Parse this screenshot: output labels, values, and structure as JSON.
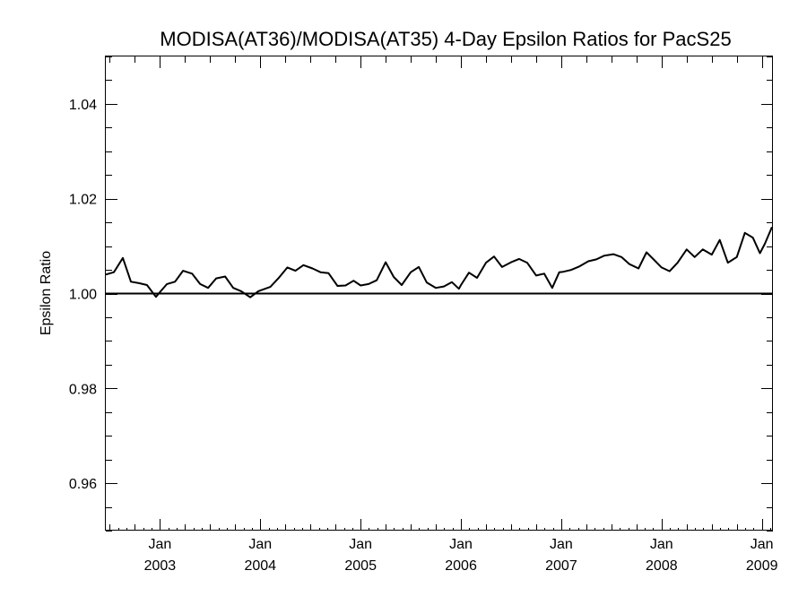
{
  "chart_data": {
    "type": "line",
    "title": "MODISA(AT36)/MODISA(AT35) 4-Day Epsilon Ratios for PacS25",
    "xlabel": "",
    "ylabel": "Epsilon Ratio",
    "xlim": [
      2002.46,
      2009.11
    ],
    "ylim": [
      0.95,
      1.05
    ],
    "yticks": [
      {
        "value": 0.96,
        "label": "0.96"
      },
      {
        "value": 0.98,
        "label": "0.98"
      },
      {
        "value": 1.0,
        "label": "1.00"
      },
      {
        "value": 1.02,
        "label": "1.02"
      },
      {
        "value": 1.04,
        "label": "1.04"
      }
    ],
    "xticks": [
      {
        "value": 2003,
        "month": "Jan",
        "year": "2003"
      },
      {
        "value": 2004,
        "month": "Jan",
        "year": "2004"
      },
      {
        "value": 2005,
        "month": "Jan",
        "year": "2005"
      },
      {
        "value": 2006,
        "month": "Jan",
        "year": "2006"
      },
      {
        "value": 2007,
        "month": "Jan",
        "year": "2007"
      },
      {
        "value": 2008,
        "month": "Jan",
        "year": "2008"
      },
      {
        "value": 2009,
        "month": "Jan",
        "year": "2009"
      }
    ],
    "reference_line": 1.0,
    "grid": false,
    "series": [
      {
        "x": [
          2002.46,
          2002.54,
          2002.63,
          2002.71,
          2002.79,
          2002.87,
          2002.96,
          2003.0,
          2003.07,
          2003.15,
          2003.23,
          2003.32,
          2003.4,
          2003.48,
          2003.56,
          2003.65,
          2003.73,
          2003.81,
          2003.9,
          2003.98,
          2004.02,
          2004.1,
          2004.18,
          2004.27,
          2004.35,
          2004.43,
          2004.52,
          2004.6,
          2004.68,
          2004.77,
          2004.85,
          2004.93,
          2005.0,
          2005.08,
          2005.16,
          2005.25,
          2005.33,
          2005.41,
          2005.5,
          2005.58,
          2005.66,
          2005.75,
          2005.83,
          2005.91,
          2005.98,
          2006.0,
          2006.08,
          2006.16,
          2006.25,
          2006.33,
          2006.41,
          2006.5,
          2006.58,
          2006.66,
          2006.75,
          2006.83,
          2006.91,
          2006.98,
          2007.02,
          2007.1,
          2007.18,
          2007.27,
          2007.35,
          2007.43,
          2007.52,
          2007.6,
          2007.68,
          2007.77,
          2007.85,
          2007.93,
          2008.0,
          2008.08,
          2008.16,
          2008.25,
          2008.33,
          2008.41,
          2008.5,
          2008.58,
          2008.66,
          2008.75,
          2008.83,
          2008.91,
          2008.98,
          2009.03,
          2009.1
        ],
        "values": [
          1.004,
          1.0045,
          1.0075,
          1.0025,
          1.0022,
          1.0018,
          0.9993,
          1.0003,
          1.002,
          1.0025,
          1.0048,
          1.0042,
          1.002,
          1.0012,
          1.0032,
          1.0036,
          1.0012,
          1.0005,
          0.9992,
          1.0005,
          1.0008,
          1.0014,
          1.0032,
          1.0055,
          1.0048,
          1.006,
          1.0053,
          1.0045,
          1.0043,
          1.0016,
          1.0017,
          1.0027,
          1.0017,
          1.002,
          1.0028,
          1.0066,
          1.0035,
          1.0018,
          1.0045,
          1.0056,
          1.0023,
          1.0012,
          1.0015,
          1.0024,
          1.001,
          1.0018,
          1.0044,
          1.0033,
          1.0065,
          1.0078,
          1.0056,
          1.0066,
          1.0073,
          1.0065,
          1.0038,
          1.0042,
          1.0012,
          1.0045,
          1.0046,
          1.005,
          1.0057,
          1.0068,
          1.0072,
          1.008,
          1.0083,
          1.0077,
          1.0062,
          1.0053,
          1.0087,
          1.007,
          1.0055,
          1.0047,
          1.0065,
          1.0093,
          1.0077,
          1.0093,
          1.0082,
          1.0113,
          1.0065,
          1.0077,
          1.0128,
          1.0118,
          1.0085,
          1.0105,
          1.014
        ]
      }
    ]
  }
}
